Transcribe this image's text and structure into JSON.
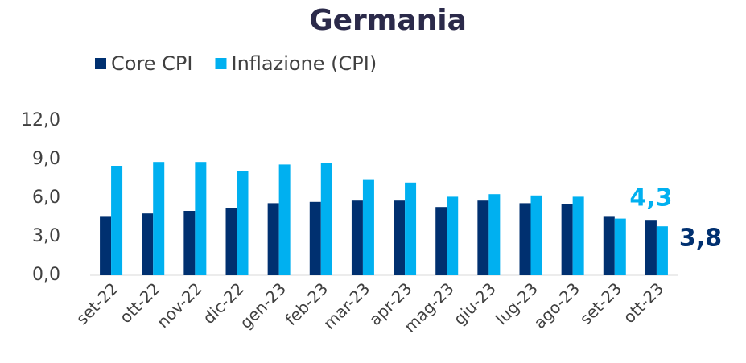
{
  "chart_data": {
    "type": "bar",
    "title": "Germania",
    "categories": [
      "set-22",
      "ott-22",
      "nov-22",
      "dic-22",
      "gen-23",
      "feb-23",
      "mar-23",
      "apr-23",
      "mag-23",
      "giu-23",
      "lug-23",
      "ago-23",
      "set-23",
      "ott-23"
    ],
    "series": [
      {
        "name": "Core CPI",
        "color": "#003070",
        "label_color": "#00b0f0",
        "values": [
          4.6,
          4.8,
          5.0,
          5.2,
          5.6,
          5.7,
          5.8,
          5.8,
          5.3,
          5.8,
          5.6,
          5.5,
          4.6,
          4.3
        ],
        "value_labels": [
          null,
          null,
          null,
          null,
          null,
          null,
          null,
          null,
          null,
          null,
          null,
          null,
          null,
          "4,3"
        ]
      },
      {
        "name": "Inflazione (CPI)",
        "color": "#00b0f0",
        "label_color": "#003070",
        "values": [
          8.5,
          8.8,
          8.8,
          8.1,
          8.6,
          8.7,
          7.4,
          7.2,
          6.1,
          6.3,
          6.2,
          6.1,
          4.4,
          3.8
        ],
        "value_labels": [
          null,
          null,
          null,
          null,
          null,
          null,
          null,
          null,
          null,
          null,
          null,
          null,
          null,
          "3,8"
        ]
      }
    ],
    "ylim": [
      0,
      12
    ],
    "yticks": [
      {
        "value": 0,
        "label": "0,0"
      },
      {
        "value": 3,
        "label": "3,0"
      },
      {
        "value": 6,
        "label": "6,0"
      },
      {
        "value": 9,
        "label": "9,0"
      },
      {
        "value": 12,
        "label": "12,0"
      }
    ],
    "legend": "top"
  }
}
